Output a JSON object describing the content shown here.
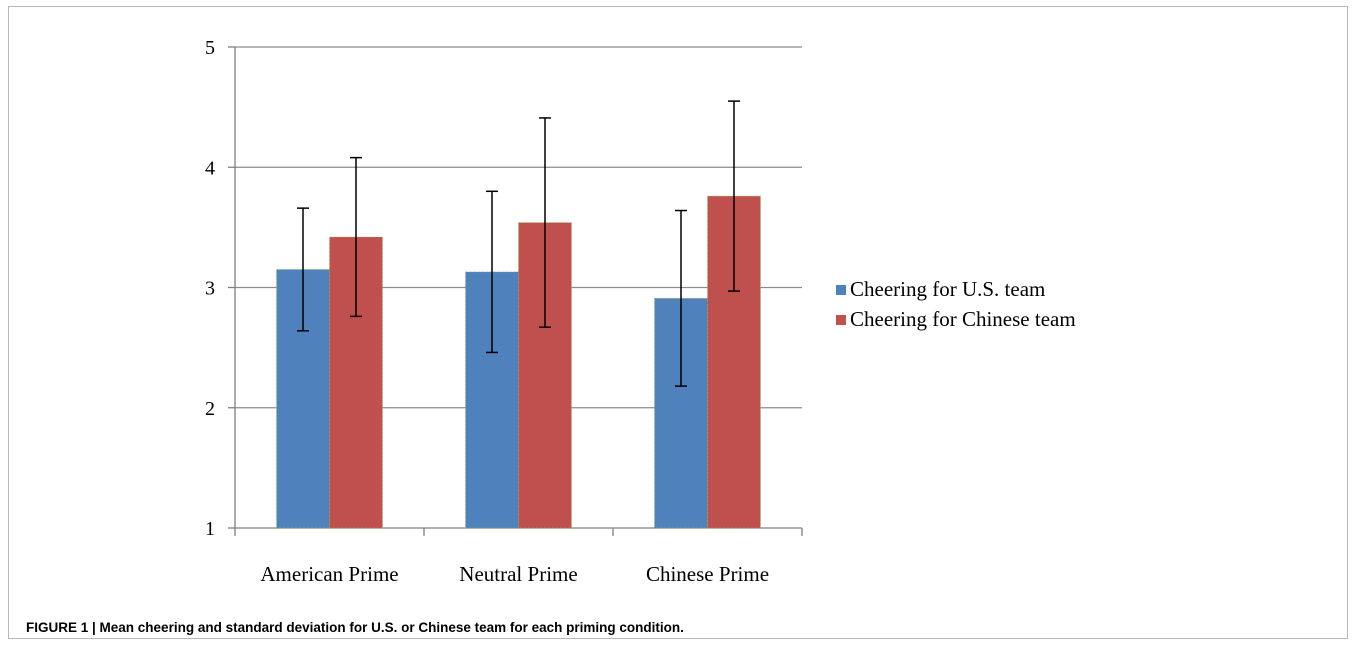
{
  "caption": "FIGURE 1 | Mean cheering and standard deviation for U.S. or Chinese team for each priming condition.",
  "colors": {
    "us": "#4f81bd",
    "chinese": "#c0504d",
    "grid": "#8c8c8c",
    "axis": "#808080"
  },
  "chart_data": {
    "type": "bar",
    "categories": [
      "American Prime",
      "Neutral Prime",
      "Chinese Prime"
    ],
    "series": [
      {
        "name": "Cheering for U.S. team",
        "values": [
          3.15,
          3.13,
          2.91
        ],
        "sd": [
          0.51,
          0.67,
          0.73
        ]
      },
      {
        "name": "Cheering for Chinese team",
        "values": [
          3.42,
          3.54,
          3.76
        ],
        "sd": [
          0.66,
          0.87,
          0.79
        ]
      }
    ],
    "yticks": [
      1,
      2,
      3,
      4,
      5
    ],
    "ylim": [
      1,
      5
    ],
    "grid": true,
    "legend_position": "right",
    "title": "",
    "xlabel": "",
    "ylabel": ""
  }
}
